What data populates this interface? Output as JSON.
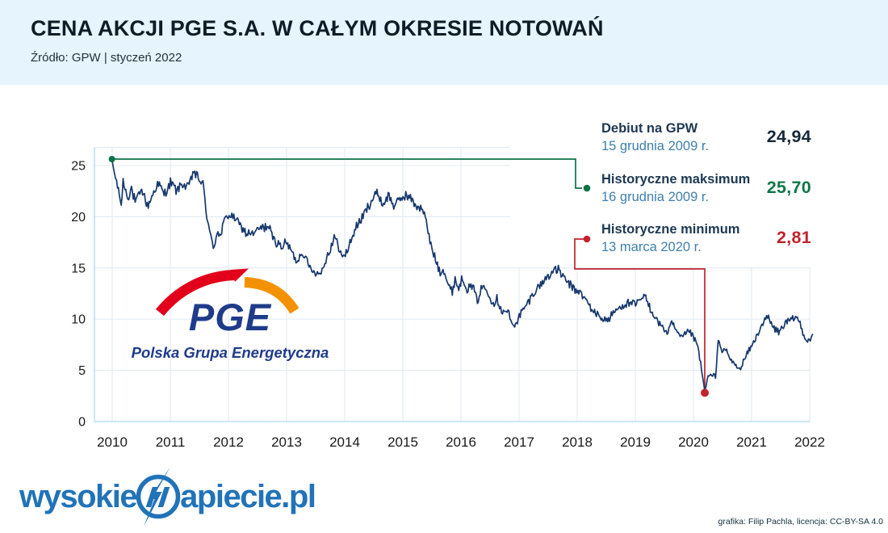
{
  "header": {
    "title": "CENA AKCJI PGE S.A. W CAŁYM OKRESIE NOTOWAŃ",
    "source": "Źródło: GPW | styczeń 2022"
  },
  "annotations": [
    {
      "label": "Debiut na GPW",
      "date": "15 grudnia 2009 r.",
      "value": "24,94",
      "value_color": "#17293a",
      "dot_color": null
    },
    {
      "label": "Historyczne maksimum",
      "date": "16 grudnia 2009 r.",
      "value": "25,70",
      "value_color": "#10764a",
      "dot_color": "#0e7248"
    },
    {
      "label": "Historyczne minimum",
      "date": "13 marca 2020 r.",
      "value": "2,81",
      "value_color": "#c0232e",
      "dot_color": "#c0232e"
    }
  ],
  "logos": {
    "pge": {
      "name": "PGE",
      "subtitle": "Polska Grupa Energetyczna",
      "navy": "#1f3b8a",
      "red": "#e2001a",
      "orange": "#f39200"
    },
    "wysokie": {
      "prefix": "wysokie",
      "suffix": "apiecie.pl",
      "color": "#2173b8"
    }
  },
  "credit": "grafika: Filip Pachla, licencja: CC-BY-SA 4.0",
  "chart_data": {
    "type": "line",
    "series_name": "Cena akcji PGE S.A.",
    "x_ticks": [
      "2010",
      "2011",
      "2012",
      "2013",
      "2014",
      "2015",
      "2016",
      "2017",
      "2018",
      "2019",
      "2020",
      "2021",
      "2022"
    ],
    "y_ticks": [
      0,
      5,
      10,
      15,
      20,
      25
    ],
    "xlim": [
      2009.69,
      2022.1
    ],
    "ylim": [
      0,
      26.8
    ],
    "grid": true,
    "legend": "none",
    "line_color": "#17386d",
    "grid_color": "#e3edf3",
    "axis_color": "#bedff2",
    "tick_color": "#1a1a1a",
    "max_line_color": "#0e7248",
    "min_line_color": "#c0232e",
    "key_points": {
      "debut": {
        "date": "15 grudnia 2009 r.",
        "value": 24.94
      },
      "max": {
        "date": "16 grudnia 2009 r.",
        "value": 25.7
      },
      "min": {
        "date": "13 marca 2020 r.",
        "value": 2.81
      }
    },
    "anchors": [
      [
        2009.995,
        25.62
      ],
      [
        2010.04,
        24.2
      ],
      [
        2010.08,
        23.3
      ],
      [
        2010.13,
        21.9
      ],
      [
        2010.16,
        21.3
      ],
      [
        2010.19,
        23.6
      ],
      [
        2010.26,
        21.8
      ],
      [
        2010.33,
        22.8
      ],
      [
        2010.4,
        21.3
      ],
      [
        2010.47,
        22.3
      ],
      [
        2010.54,
        22.5
      ],
      [
        2010.6,
        20.9
      ],
      [
        2010.68,
        22.0
      ],
      [
        2010.78,
        23.2
      ],
      [
        2010.9,
        22.2
      ],
      [
        2011.01,
        23.4
      ],
      [
        2011.1,
        22.5
      ],
      [
        2011.2,
        23.3
      ],
      [
        2011.3,
        22.8
      ],
      [
        2011.4,
        24.4
      ],
      [
        2011.48,
        23.8
      ],
      [
        2011.57,
        23.0
      ],
      [
        2011.62,
        20.4
      ],
      [
        2011.68,
        18.3
      ],
      [
        2011.75,
        17.0
      ],
      [
        2011.82,
        18.8
      ],
      [
        2011.86,
        17.9
      ],
      [
        2011.93,
        19.6
      ],
      [
        2012.0,
        20.2
      ],
      [
        2012.12,
        19.9
      ],
      [
        2012.2,
        19.2
      ],
      [
        2012.3,
        18.4
      ],
      [
        2012.44,
        18.3
      ],
      [
        2012.55,
        18.9
      ],
      [
        2012.68,
        19.1
      ],
      [
        2012.79,
        17.7
      ],
      [
        2012.9,
        17.1
      ],
      [
        2013.0,
        17.5
      ],
      [
        2013.1,
        16.4
      ],
      [
        2013.17,
        15.7
      ],
      [
        2013.28,
        16.6
      ],
      [
        2013.38,
        15.2
      ],
      [
        2013.5,
        14.6
      ],
      [
        2013.58,
        14.4
      ],
      [
        2013.7,
        16.2
      ],
      [
        2013.83,
        18.0
      ],
      [
        2013.9,
        17.0
      ],
      [
        2013.97,
        15.9
      ],
      [
        2014.05,
        16.8
      ],
      [
        2014.18,
        18.8
      ],
      [
        2014.3,
        19.8
      ],
      [
        2014.4,
        21.0
      ],
      [
        2014.5,
        21.9
      ],
      [
        2014.57,
        22.4
      ],
      [
        2014.65,
        21.2
      ],
      [
        2014.76,
        22.1
      ],
      [
        2014.85,
        21.0
      ],
      [
        2014.94,
        21.7
      ],
      [
        2015.06,
        22.1
      ],
      [
        2015.15,
        21.6
      ],
      [
        2015.25,
        21.0
      ],
      [
        2015.36,
        20.4
      ],
      [
        2015.42,
        19.0
      ],
      [
        2015.48,
        17.2
      ],
      [
        2015.56,
        15.8
      ],
      [
        2015.64,
        14.7
      ],
      [
        2015.7,
        14.9
      ],
      [
        2015.78,
        13.4
      ],
      [
        2015.85,
        12.6
      ],
      [
        2015.9,
        14.0
      ],
      [
        2015.96,
        13.0
      ],
      [
        2016.03,
        14.0
      ],
      [
        2016.12,
        12.9
      ],
      [
        2016.2,
        13.3
      ],
      [
        2016.28,
        11.8
      ],
      [
        2016.36,
        13.1
      ],
      [
        2016.46,
        12.8
      ],
      [
        2016.55,
        11.5
      ],
      [
        2016.62,
        12.0
      ],
      [
        2016.72,
        10.6
      ],
      [
        2016.8,
        10.9
      ],
      [
        2016.89,
        9.3
      ],
      [
        2016.96,
        9.8
      ],
      [
        2017.06,
        10.8
      ],
      [
        2017.15,
        11.6
      ],
      [
        2017.28,
        12.8
      ],
      [
        2017.4,
        13.6
      ],
      [
        2017.5,
        14.2
      ],
      [
        2017.6,
        14.7
      ],
      [
        2017.68,
        14.9
      ],
      [
        2017.76,
        14.0
      ],
      [
        2017.86,
        13.4
      ],
      [
        2017.95,
        12.9
      ],
      [
        2018.05,
        12.6
      ],
      [
        2018.15,
        11.8
      ],
      [
        2018.25,
        11.0
      ],
      [
        2018.35,
        10.4
      ],
      [
        2018.45,
        10.0
      ],
      [
        2018.52,
        9.9
      ],
      [
        2018.62,
        10.6
      ],
      [
        2018.72,
        11.1
      ],
      [
        2018.82,
        11.5
      ],
      [
        2018.92,
        11.6
      ],
      [
        2019.0,
        11.3
      ],
      [
        2019.1,
        12.0
      ],
      [
        2019.16,
        12.2
      ],
      [
        2019.26,
        11.0
      ],
      [
        2019.36,
        10.0
      ],
      [
        2019.46,
        9.2
      ],
      [
        2019.55,
        8.7
      ],
      [
        2019.62,
        9.6
      ],
      [
        2019.7,
        8.9
      ],
      [
        2019.78,
        8.1
      ],
      [
        2019.86,
        8.5
      ],
      [
        2019.93,
        8.9
      ],
      [
        2020.0,
        8.2
      ],
      [
        2020.08,
        7.2
      ],
      [
        2020.14,
        5.0
      ],
      [
        2020.195,
        2.95
      ],
      [
        2020.25,
        4.4
      ],
      [
        2020.32,
        4.5
      ],
      [
        2020.38,
        4.4
      ],
      [
        2020.43,
        8.1
      ],
      [
        2020.5,
        6.7
      ],
      [
        2020.55,
        7.1
      ],
      [
        2020.63,
        6.1
      ],
      [
        2020.71,
        5.6
      ],
      [
        2020.79,
        5.0
      ],
      [
        2020.86,
        5.9
      ],
      [
        2020.93,
        6.7
      ],
      [
        2021.0,
        7.3
      ],
      [
        2021.1,
        8.5
      ],
      [
        2021.2,
        9.7
      ],
      [
        2021.28,
        10.2
      ],
      [
        2021.38,
        9.1
      ],
      [
        2021.48,
        8.7
      ],
      [
        2021.58,
        9.6
      ],
      [
        2021.68,
        9.9
      ],
      [
        2021.77,
        10.2
      ],
      [
        2021.84,
        9.5
      ],
      [
        2021.9,
        8.5
      ],
      [
        2021.95,
        7.9
      ],
      [
        2022.0,
        8.0
      ],
      [
        2022.06,
        8.3
      ]
    ]
  }
}
